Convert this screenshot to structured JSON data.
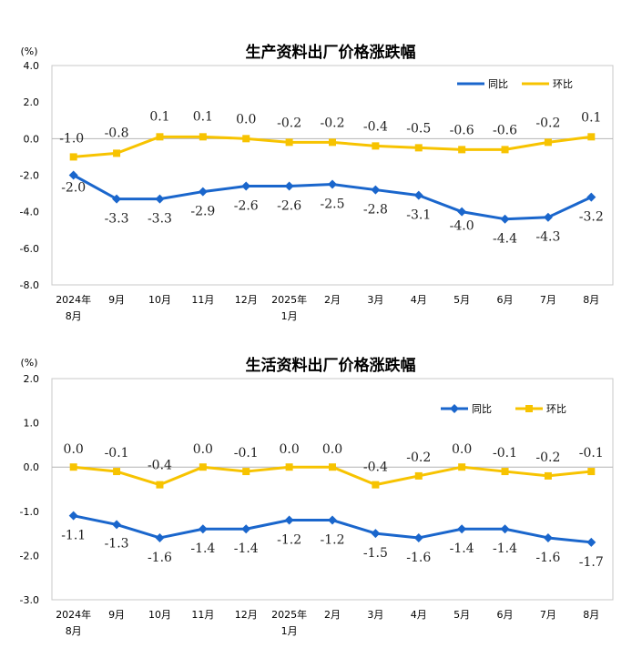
{
  "chart_data": [
    {
      "type": "line",
      "title": "生产资料出厂价格涨跌幅",
      "unit": "(%)",
      "categories": [
        [
          "2024年",
          "8月"
        ],
        [
          "9月"
        ],
        [
          "10月"
        ],
        [
          "11月"
        ],
        [
          "12月"
        ],
        [
          "2025年",
          "1月"
        ],
        [
          "2月"
        ],
        [
          "3月"
        ],
        [
          "4月"
        ],
        [
          "5月"
        ],
        [
          "6月"
        ],
        [
          "7月"
        ],
        [
          "8月"
        ]
      ],
      "yticks": [
        "4.0",
        "2.0",
        "0.0",
        "-2.0",
        "-4.0",
        "-6.0",
        "-8.0"
      ],
      "ylim": [
        -8,
        4
      ],
      "legend_position": "top-right",
      "series": [
        {
          "name": "同比",
          "color": "#1a66cc",
          "marker": "diamond",
          "values": [
            -2.0,
            -3.3,
            -3.3,
            -2.9,
            -2.6,
            -2.6,
            -2.5,
            -2.8,
            -3.1,
            -4.0,
            -4.4,
            -4.3,
            -3.2
          ],
          "labels": [
            "-2.0",
            "-3.3",
            "-3.3",
            "-2.9",
            "-2.6",
            "-2.6",
            "-2.5",
            "-2.8",
            "-3.1",
            "-4.0",
            "-4.4",
            "-4.3",
            "-3.2"
          ]
        },
        {
          "name": "环比",
          "color": "#f7c300",
          "marker": "square",
          "values": [
            -1.0,
            -0.8,
            0.1,
            0.1,
            0.0,
            -0.2,
            -0.2,
            -0.4,
            -0.5,
            -0.6,
            -0.6,
            -0.2,
            0.1
          ],
          "labels": [
            "-1.0",
            "-0.8",
            "0.1",
            "0.1",
            "0.0",
            "-0.2",
            "-0.2",
            "-0.4",
            "-0.5",
            "-0.6",
            "-0.6",
            "-0.2",
            "0.1"
          ]
        }
      ]
    },
    {
      "type": "line",
      "title": "生活资料出厂价格涨跌幅",
      "unit": "(%)",
      "categories": [
        [
          "2024年",
          "8月"
        ],
        [
          "9月"
        ],
        [
          "10月"
        ],
        [
          "11月"
        ],
        [
          "12月"
        ],
        [
          "2025年",
          "1月"
        ],
        [
          "2月"
        ],
        [
          "3月"
        ],
        [
          "4月"
        ],
        [
          "5月"
        ],
        [
          "6月"
        ],
        [
          "7月"
        ],
        [
          "8月"
        ]
      ],
      "yticks": [
        "2.0",
        "1.0",
        "0.0",
        "-1.0",
        "-2.0",
        "-3.0"
      ],
      "ylim": [
        -3,
        2
      ],
      "legend_position": "top-right",
      "series": [
        {
          "name": "同比",
          "color": "#1a66cc",
          "marker": "diamond",
          "values": [
            -1.1,
            -1.3,
            -1.6,
            -1.4,
            -1.4,
            -1.2,
            -1.2,
            -1.5,
            -1.6,
            -1.4,
            -1.4,
            -1.6,
            -1.7
          ],
          "labels": [
            "-1.1",
            "-1.3",
            "-1.6",
            "-1.4",
            "-1.4",
            "-1.2",
            "-1.2",
            "-1.5",
            "-1.6",
            "-1.4",
            "-1.4",
            "-1.6",
            "-1.7"
          ]
        },
        {
          "name": "环比",
          "color": "#f7c300",
          "marker": "square",
          "values": [
            0.0,
            -0.1,
            -0.4,
            0.0,
            -0.1,
            0.0,
            0.0,
            -0.4,
            -0.2,
            0.0,
            -0.1,
            -0.2,
            -0.1
          ],
          "labels": [
            "0.0",
            "-0.1",
            "-0.4",
            "0.0",
            "-0.1",
            "0.0",
            "0.0",
            "-0.4",
            "-0.2",
            "0.0",
            "-0.1",
            "-0.2",
            "-0.1"
          ]
        }
      ]
    }
  ]
}
